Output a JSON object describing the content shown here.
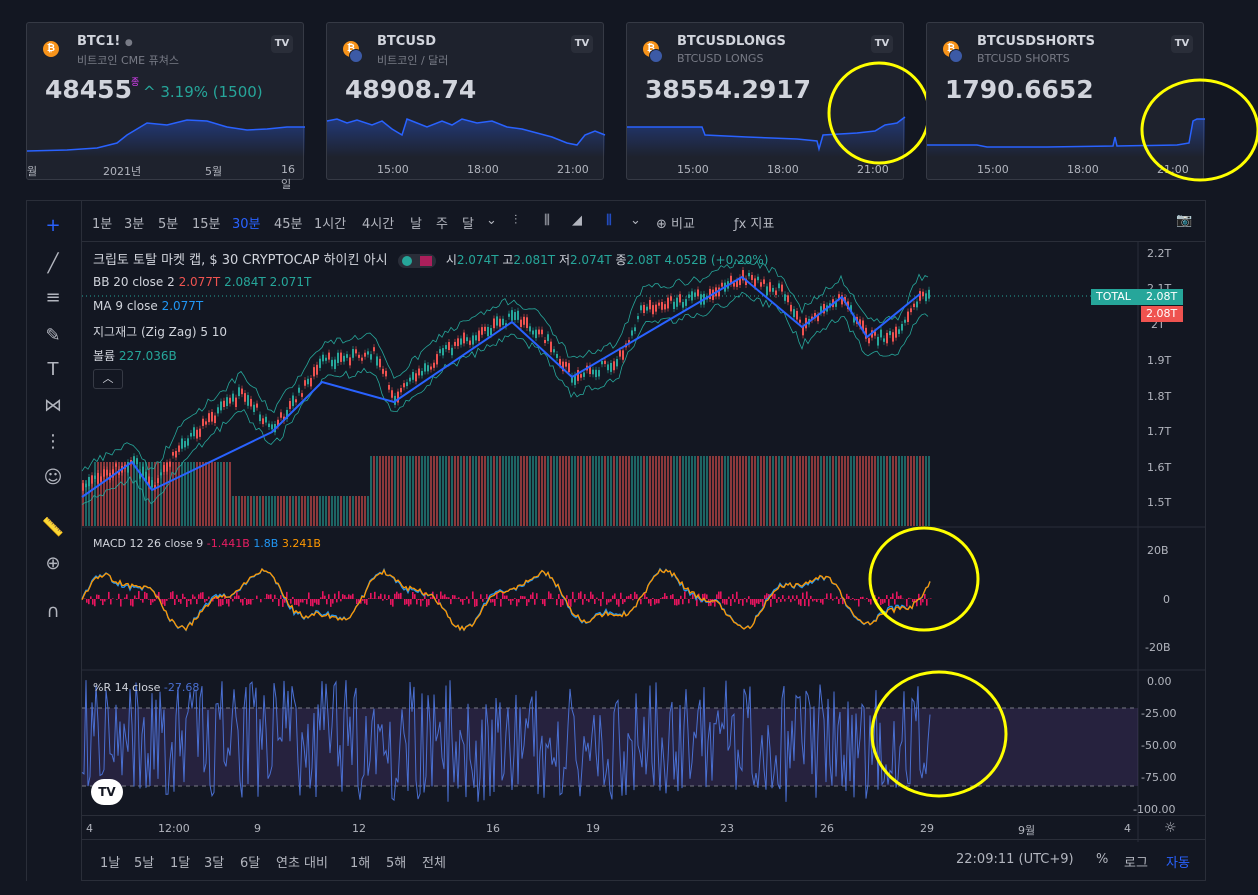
{
  "cards": [
    {
      "symbol": "BTC1!",
      "dot": "●",
      "desc": "비트코인 CME 퓨쳐스",
      "price": "48455",
      "sup": "종",
      "change": "^ 3.19% (1500)",
      "xticks": [
        "월",
        "2021년",
        "5월",
        "16일"
      ]
    },
    {
      "symbol": "BTCUSD",
      "desc": "비트코인 / 달러",
      "price": "48908.74",
      "xticks": [
        "15:00",
        "18:00",
        "21:00"
      ]
    },
    {
      "symbol": "BTCUSDLONGS",
      "desc": "BTCUSD LONGS",
      "price": "38554.2917",
      "xticks": [
        "15:00",
        "18:00",
        "21:00"
      ]
    },
    {
      "symbol": "BTCUSDSHORTS",
      "desc": "BTCUSD SHORTS",
      "price": "1790.6652",
      "xticks": [
        "15:00",
        "18:00",
        "21:00"
      ]
    }
  ],
  "toolbar": {
    "timeframes": [
      "1분",
      "3분",
      "5분",
      "15분",
      "30분",
      "45분",
      "1시간",
      "4시간",
      "날",
      "주",
      "달"
    ],
    "active": "30분",
    "compare": "비교",
    "indicators": "지표"
  },
  "legend": {
    "title": "크립토 토탈 마켓 캡, $  30  CRYPTOCAP  하이킨 아시",
    "ohlc_o_label": "시",
    "ohlc_o": "2.074T",
    "ohlc_h_label": "고",
    "ohlc_h": "2.081T",
    "ohlc_l_label": "저",
    "ohlc_l": "2.074T",
    "ohlc_c_label": "종",
    "ohlc_c": "2.08T",
    "ohlc_chg": "4.052B (+0.20%)",
    "bb_label": "BB 20 close 2",
    "bb_v1": "2.077T",
    "bb_v2": "2.084T",
    "bb_v3": "2.071T",
    "ma_label": "MA 9 close",
    "ma_v": "2.077T",
    "zz_label": "지그재그 (Zig Zag) 5 10",
    "vol_label": "볼륨",
    "vol_v": "227.036B"
  },
  "price_axis": [
    "2.2T",
    "2.1T",
    "2T",
    "1.9T",
    "1.8T",
    "1.7T",
    "1.6T",
    "1.5T"
  ],
  "price_tags": {
    "total_label": "TOTAL",
    "total_value": "2.08T",
    "red_value": "2.08T"
  },
  "macd": {
    "label": "MACD 12 26 close 9",
    "v1": "-1.441B",
    "v2": "1.8B",
    "v3": "3.241B",
    "axis": [
      "20B",
      "0",
      "-20B"
    ]
  },
  "wr": {
    "label": "%R 14 close",
    "v": "-27.68",
    "axis": [
      "0.00",
      "-25.00",
      "-50.00",
      "-75.00",
      "-100.00"
    ]
  },
  "time_axis": [
    "4",
    "12:00",
    "9",
    "12",
    "16",
    "19",
    "23",
    "26",
    "29",
    "9월",
    "4"
  ],
  "bottom": {
    "ranges": [
      "1날",
      "5날",
      "1달",
      "3달",
      "6달",
      "연초 대비",
      "1해",
      "5해",
      "전체"
    ],
    "clock": "22:09:11 (UTC+9)",
    "pct": "%",
    "log": "로그",
    "auto": "자동"
  },
  "colors": {
    "bg": "#131722",
    "panel": "#1e222d",
    "blue": "#2962ff",
    "teal": "#26a69a",
    "red": "#ef5350",
    "annotation": "#ffff00"
  }
}
